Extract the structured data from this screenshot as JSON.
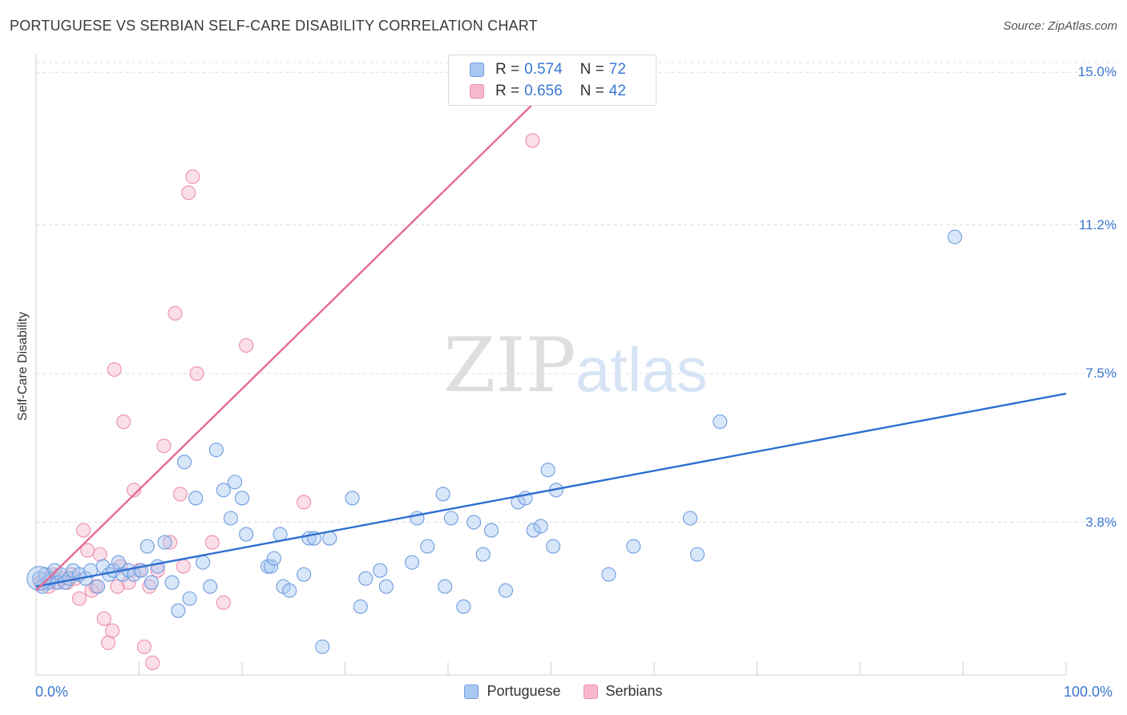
{
  "header": {
    "title": "PORTUGUESE VS SERBIAN SELF-CARE DISABILITY CORRELATION CHART",
    "source": "Source: ZipAtlas.com"
  },
  "watermark": {
    "zip": "ZIP",
    "atlas": "atlas"
  },
  "legend": {
    "rows": [
      {
        "r_label": "R =",
        "r_value": "0.574",
        "n_label": "N =",
        "n_value": "72"
      },
      {
        "r_label": "R =",
        "r_value": "0.656",
        "n_label": "N =",
        "n_value": "42"
      }
    ]
  },
  "colors": {
    "portuguese_fill": "#a9c8f2",
    "portuguese_stroke": "#6f9ddf",
    "portuguese_line": "#2f6fd0",
    "serbian_fill": "#f7b8cb",
    "serbian_stroke": "#ec8fab",
    "serbian_line": "#e66a93",
    "tick_label": "#3a77d0",
    "grid": "#dcdcdc"
  },
  "chart_data": {
    "type": "scatter",
    "title": "PORTUGUESE VS SERBIAN SELF-CARE DISABILITY CORRELATION CHART",
    "xlabel": "",
    "ylabel": "Self-Care Disability",
    "xlim": [
      0,
      100
    ],
    "ylim": [
      0,
      15.6
    ],
    "x_tick_labels": {
      "left": "0.0%",
      "right": "100.0%"
    },
    "y_ticks": [
      {
        "value": 3.8,
        "label": "3.8%"
      },
      {
        "value": 7.5,
        "label": "7.5%"
      },
      {
        "value": 11.2,
        "label": "11.2%"
      },
      {
        "value": 15.0,
        "label": "15.0%"
      }
    ],
    "legend_position": "top-center",
    "series": [
      {
        "name": "Portuguese",
        "r": 0.574,
        "n": 72,
        "trend": {
          "x": [
            0,
            100
          ],
          "y": [
            2.2,
            7.0
          ]
        },
        "points": [
          [
            0.3,
            2.4
          ],
          [
            0.6,
            2.2
          ],
          [
            0.9,
            2.5
          ],
          [
            1.2,
            2.3
          ],
          [
            1.5,
            2.4
          ],
          [
            1.8,
            2.6
          ],
          [
            2.1,
            2.3
          ],
          [
            2.4,
            2.5
          ],
          [
            2.8,
            2.3
          ],
          [
            3.2,
            2.4
          ],
          [
            3.6,
            2.6
          ],
          [
            4.2,
            2.5
          ],
          [
            4.8,
            2.4
          ],
          [
            5.3,
            2.6
          ],
          [
            6.0,
            2.2
          ],
          [
            6.5,
            2.7
          ],
          [
            7.1,
            2.5
          ],
          [
            7.5,
            2.6
          ],
          [
            8.0,
            2.8
          ],
          [
            8.4,
            2.5
          ],
          [
            9.0,
            2.6
          ],
          [
            9.5,
            2.5
          ],
          [
            10.2,
            2.6
          ],
          [
            10.8,
            3.2
          ],
          [
            11.2,
            2.3
          ],
          [
            11.8,
            2.7
          ],
          [
            12.5,
            3.3
          ],
          [
            13.2,
            2.3
          ],
          [
            13.8,
            1.6
          ],
          [
            14.4,
            5.3
          ],
          [
            14.9,
            1.9
          ],
          [
            15.5,
            4.4
          ],
          [
            16.2,
            2.8
          ],
          [
            16.9,
            2.2
          ],
          [
            17.5,
            5.6
          ],
          [
            18.2,
            4.6
          ],
          [
            18.9,
            3.9
          ],
          [
            19.3,
            4.8
          ],
          [
            20.0,
            4.4
          ],
          [
            20.4,
            3.5
          ],
          [
            22.5,
            2.7
          ],
          [
            22.8,
            2.7
          ],
          [
            23.1,
            2.9
          ],
          [
            23.7,
            3.5
          ],
          [
            24.0,
            2.2
          ],
          [
            24.6,
            2.1
          ],
          [
            26.0,
            2.5
          ],
          [
            26.5,
            3.4
          ],
          [
            27.0,
            3.4
          ],
          [
            27.8,
            0.7
          ],
          [
            28.5,
            3.4
          ],
          [
            30.7,
            4.4
          ],
          [
            31.5,
            1.7
          ],
          [
            32.0,
            2.4
          ],
          [
            33.4,
            2.6
          ],
          [
            34.0,
            2.2
          ],
          [
            36.5,
            2.8
          ],
          [
            37.0,
            3.9
          ],
          [
            38.0,
            3.2
          ],
          [
            39.5,
            4.5
          ],
          [
            39.7,
            2.2
          ],
          [
            40.3,
            3.9
          ],
          [
            41.5,
            1.7
          ],
          [
            42.5,
            3.8
          ],
          [
            43.4,
            3.0
          ],
          [
            44.2,
            3.6
          ],
          [
            45.6,
            2.1
          ],
          [
            46.8,
            4.3
          ],
          [
            47.5,
            4.4
          ],
          [
            48.3,
            3.6
          ],
          [
            49.0,
            3.7
          ],
          [
            50.2,
            3.2
          ]
        ],
        "extra_points": [
          [
            49.7,
            5.1
          ],
          [
            50.5,
            4.6
          ],
          [
            55.6,
            2.5
          ],
          [
            58.0,
            3.2
          ],
          [
            63.5,
            3.9
          ],
          [
            64.2,
            3.0
          ],
          [
            66.4,
            6.3
          ],
          [
            89.2,
            10.9
          ]
        ]
      },
      {
        "name": "Serbians",
        "r": 0.656,
        "n": 42,
        "trend": {
          "x": [
            0,
            49
          ],
          "y": [
            2.1,
            14.4
          ]
        },
        "points": [
          [
            0.4,
            2.3
          ],
          [
            0.8,
            2.4
          ],
          [
            1.2,
            2.2
          ],
          [
            1.6,
            2.5
          ],
          [
            2.0,
            2.3
          ],
          [
            2.5,
            2.4
          ],
          [
            3.0,
            2.3
          ],
          [
            3.4,
            2.5
          ],
          [
            3.8,
            2.4
          ],
          [
            4.2,
            1.9
          ],
          [
            4.6,
            3.6
          ],
          [
            5.0,
            3.1
          ],
          [
            5.4,
            2.1
          ],
          [
            5.8,
            2.2
          ],
          [
            6.2,
            3.0
          ],
          [
            6.6,
            1.4
          ],
          [
            7.0,
            0.8
          ],
          [
            7.4,
            1.1
          ],
          [
            7.9,
            2.2
          ],
          [
            8.2,
            2.7
          ],
          [
            8.5,
            6.3
          ],
          [
            9.0,
            2.3
          ],
          [
            9.5,
            4.6
          ],
          [
            10.0,
            2.6
          ],
          [
            10.5,
            0.7
          ],
          [
            11.0,
            2.2
          ],
          [
            11.3,
            0.3
          ],
          [
            11.8,
            2.6
          ],
          [
            12.4,
            5.7
          ],
          [
            13.0,
            3.3
          ],
          [
            13.5,
            9.0
          ],
          [
            14.0,
            4.5
          ],
          [
            14.3,
            2.7
          ],
          [
            14.8,
            12.0
          ],
          [
            15.2,
            12.4
          ],
          [
            15.6,
            7.5
          ],
          [
            17.1,
            3.3
          ],
          [
            18.2,
            1.8
          ],
          [
            20.4,
            8.2
          ],
          [
            26.0,
            4.3
          ],
          [
            7.6,
            7.6
          ],
          [
            48.2,
            13.3
          ]
        ]
      }
    ]
  },
  "bottom_legend": {
    "items": [
      "Portuguese",
      "Serbians"
    ]
  }
}
